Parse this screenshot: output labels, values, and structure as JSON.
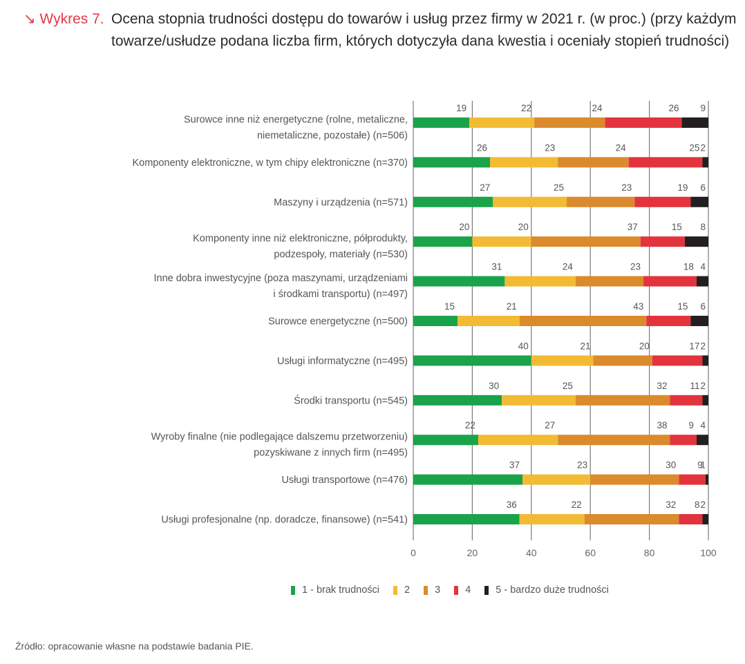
{
  "header": {
    "figure_label": "↘ Wykres 7.",
    "title": "Ocena stopnia trudności dostępu do towarów i usług przez firmy w 2021 r. (w proc.) (przy każdym towarze/usłudze podana liczba firm, których dotyczyła dana kwestia i oceniały stopień trudności)"
  },
  "source": "Źródło: opracowanie własne na podstawie badania PIE.",
  "chart_data": {
    "type": "bar",
    "orientation": "horizontal",
    "stacked": true,
    "title": "Ocena stopnia trudności dostępu do towarów i usług przez firmy w 2021 r. (w proc.)",
    "xlabel": "",
    "ylabel": "",
    "xlim": [
      0,
      100
    ],
    "xticks": [
      "0",
      "20",
      "40",
      "60",
      "80",
      "100"
    ],
    "grid": true,
    "legend_position": "bottom-right",
    "categories": [
      [
        "Surowce inne niż energetyczne (rolne, metaliczne,",
        "niemetaliczne, pozostałe) (n=506)"
      ],
      [
        "Komponenty elektroniczne, w tym chipy elektroniczne (n=370)"
      ],
      [
        "Maszyny i urządzenia (n=571)"
      ],
      [
        "Komponenty inne niż elektroniczne, półprodukty,",
        "podzespoły, materiały (n=530)"
      ],
      [
        "Inne dobra inwestycyjne (poza maszynami, urządzeniami",
        "i środkami transportu) (n=497)"
      ],
      [
        "Surowce energetyczne (n=500)"
      ],
      [
        "Usługi informatyczne (n=495)"
      ],
      [
        "Środki transportu (n=545)"
      ],
      [
        "Wyroby finalne (nie podlegające dalszemu przetworzeniu)",
        "pozyskiwane z innych firm (n=495)"
      ],
      [
        "Usługi transportowe (n=476)"
      ],
      [
        "Usługi profesjonalne (np. doradcze, finansowe) (n=541)"
      ]
    ],
    "series": [
      {
        "name": "1 - brak trudności",
        "color": "#1aa34a",
        "values": [
          19,
          26,
          27,
          20,
          31,
          15,
          40,
          30,
          22,
          37,
          36
        ]
      },
      {
        "name": "2",
        "color": "#f2bb33",
        "values": [
          22,
          23,
          25,
          20,
          24,
          21,
          21,
          25,
          27,
          23,
          22
        ]
      },
      {
        "name": "3",
        "color": "#db8a2c",
        "values": [
          24,
          24,
          23,
          37,
          23,
          43,
          20,
          32,
          38,
          30,
          32
        ]
      },
      {
        "name": "4",
        "color": "#e3343e",
        "values": [
          26,
          25,
          19,
          15,
          18,
          15,
          17,
          11,
          9,
          9,
          8
        ]
      },
      {
        "name": "5 - bardzo duże trudności",
        "color": "#231f20",
        "values": [
          9,
          2,
          6,
          8,
          4,
          6,
          2,
          2,
          4,
          1,
          2
        ]
      }
    ]
  }
}
